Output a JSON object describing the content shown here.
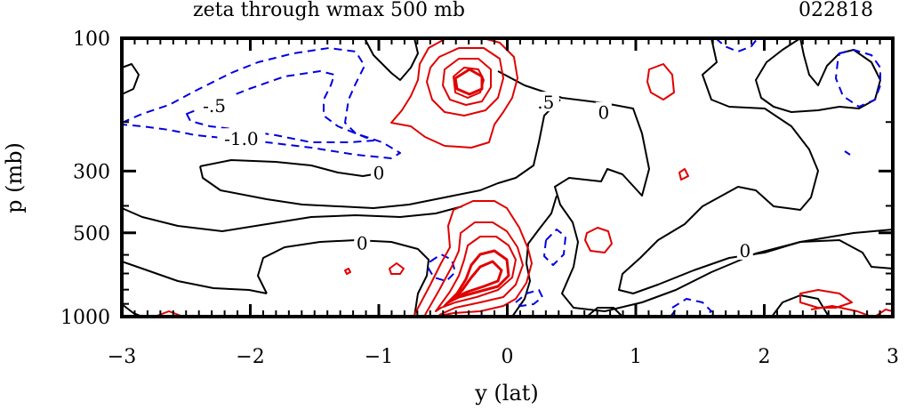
{
  "chart_data": {
    "type": "contour",
    "title": "zeta through wmax 500 mb",
    "case_id": "022818",
    "xlabel": "y (lat)",
    "ylabel": "p (mb)",
    "xlim": [
      -3,
      3
    ],
    "ylim": [
      100,
      1000
    ],
    "yscale": "log",
    "x_ticks": [
      -3,
      -2,
      -1,
      0,
      1,
      2,
      3
    ],
    "x_tick_labels": [
      "−3",
      "−2",
      "−1",
      "0",
      "1",
      "2",
      "3"
    ],
    "y_ticks": [
      100,
      300,
      500,
      1000
    ],
    "y_tick_labels": [
      "100",
      "300",
      "500",
      "1000"
    ],
    "grid": false,
    "contour_interval": 0.5,
    "colors": {
      "positive": "#e00000",
      "negative": "#0000e0",
      "zero": "#000000"
    },
    "contour_labels": [
      {
        "text": "-.5",
        "x": -2.28,
        "p": 175
      },
      {
        "text": "-1.0",
        "x": -2.07,
        "p": 230
      },
      {
        "text": ".5",
        "x": 0.3,
        "p": 170
      },
      {
        "text": "0",
        "x": 0.75,
        "p": 185
      },
      {
        "text": "0",
        "x": -1.0,
        "p": 305
      },
      {
        "text": "0",
        "x": -1.13,
        "p": 545
      },
      {
        "text": "0",
        "x": 1.85,
        "p": 580
      }
    ],
    "features": [
      {
        "name": "upper-positive-max",
        "sign": "positive",
        "x": -0.38,
        "p": 155
      },
      {
        "name": "lower-positive-max",
        "sign": "positive",
        "x": -0.22,
        "p": 730
      },
      {
        "name": "upper-negative-min",
        "sign": "negative",
        "x": -2.0,
        "p": 200
      }
    ]
  }
}
